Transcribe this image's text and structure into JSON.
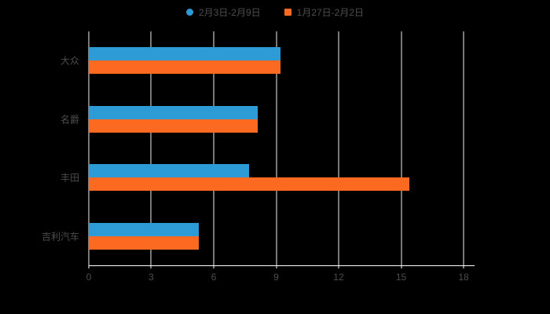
{
  "chart_data": {
    "type": "bar",
    "orientation": "horizontal",
    "title": "",
    "xlabel": "",
    "ylabel": "",
    "categories": [
      "大众",
      "名爵",
      "丰田",
      "吉利汽车"
    ],
    "series": [
      {
        "name": "2月3日-2月9日",
        "color": "#2D9BD5",
        "marker": "circle",
        "values": [
          9.2,
          8.1,
          7.7,
          5.3
        ]
      },
      {
        "name": "1月27日-2月2日",
        "color": "#FB6A20",
        "marker": "square",
        "values": [
          9.2,
          8.1,
          15.4,
          5.3
        ]
      }
    ],
    "xlim": [
      0,
      18
    ],
    "x_ticks": [
      0,
      3,
      6,
      9,
      12,
      15,
      18
    ],
    "grid": true,
    "legend_position": "top"
  },
  "style": {
    "background": "#000000",
    "grid_color": "#F0F0F0",
    "axis_color": "#FFFFFF",
    "text_color": "#4D4D4D"
  }
}
